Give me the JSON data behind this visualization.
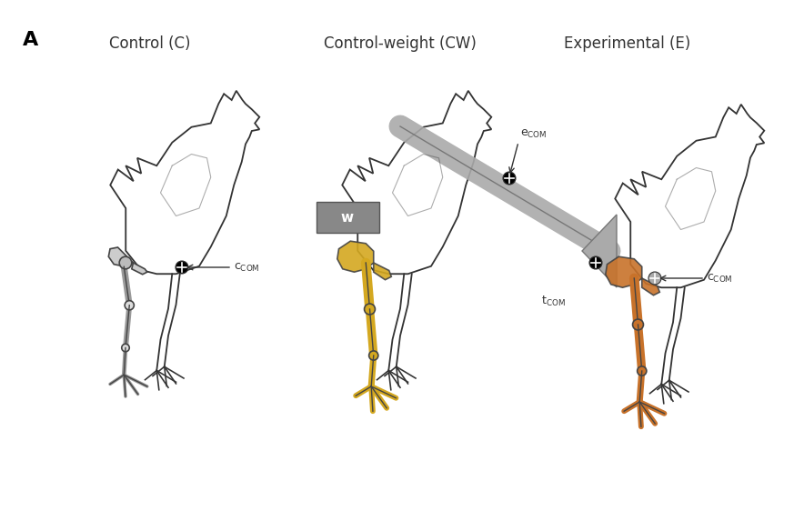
{
  "background_color": "#ffffff",
  "panel_label": "A",
  "panel_label_fontsize": 16,
  "panel_label_fontweight": "bold",
  "titles": [
    "Control (C)",
    "Control-weight (CW)",
    "Experimental (E)"
  ],
  "title_fontsize": 12,
  "title_color": "#333333",
  "color_grey_limb": "#aaaaaa",
  "color_yellow_limb": "#d4a820",
  "color_orange_limb": "#c8722a",
  "color_outline": "#333333",
  "color_weight_box_face": "#888888",
  "color_weight_box_edge": "#555555",
  "weight_box_label": "w",
  "annotation_fontsize": 9,
  "fig_width": 8.73,
  "fig_height": 5.84
}
